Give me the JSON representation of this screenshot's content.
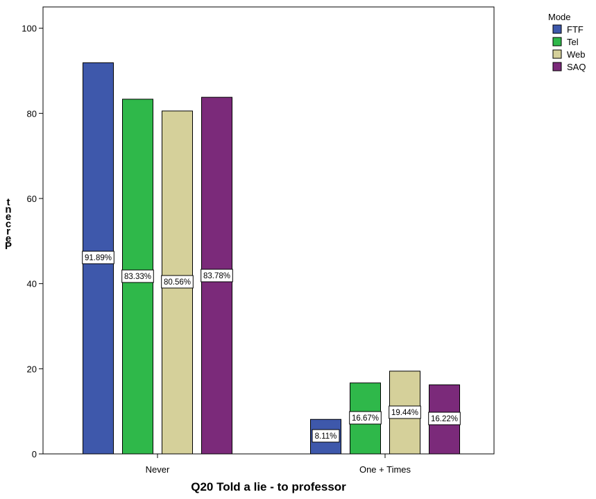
{
  "chart_data": {
    "type": "bar",
    "categories": [
      "Never",
      "One + Times"
    ],
    "series": [
      {
        "name": "FTF",
        "color": "#3e58ab",
        "values": [
          91.89,
          8.11
        ],
        "labels": [
          "91.89%",
          "8.11%"
        ]
      },
      {
        "name": "Tel",
        "color": "#2fb84a",
        "values": [
          83.33,
          16.67
        ],
        "labels": [
          "83.33%",
          "16.67%"
        ]
      },
      {
        "name": "Web",
        "color": "#d5d09a",
        "values": [
          80.56,
          19.44
        ],
        "labels": [
          "80.56%",
          "19.44%"
        ]
      },
      {
        "name": "SAQ",
        "color": "#7b2a7a",
        "values": [
          83.78,
          16.22
        ],
        "labels": [
          "83.78%",
          "16.22%"
        ]
      }
    ],
    "xlabel": "Q20 Told a lie - to professor",
    "ylabel": "Percent",
    "ylim": [
      0,
      105
    ],
    "yticks": [
      0,
      20,
      40,
      60,
      80,
      100
    ],
    "legend_title": "Mode",
    "legend_position": "top-right",
    "grid": false
  }
}
